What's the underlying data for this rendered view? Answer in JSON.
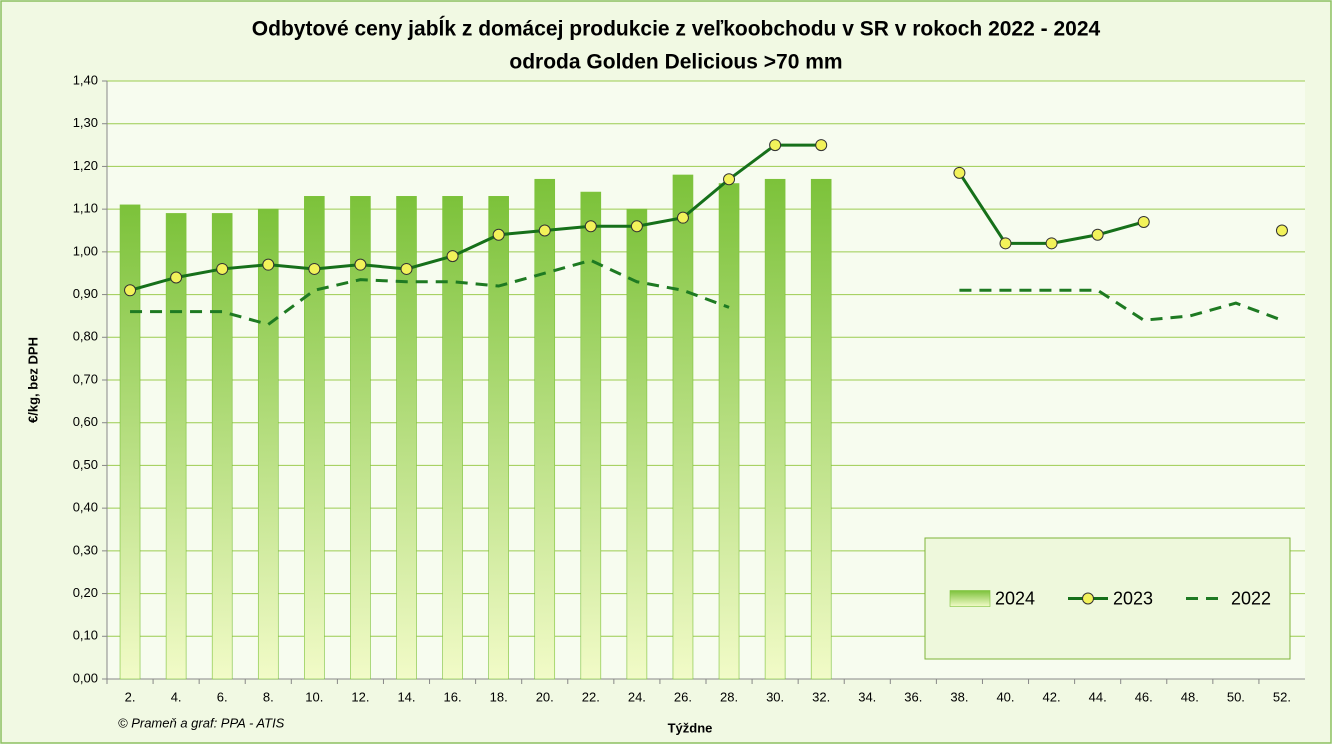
{
  "chart_data": {
    "type": "bar",
    "title": "Odbytové ceny jabĺk z domácej produkcie z veľkoobchodu v SR v rokoch 2022 - 2024",
    "subtitle": "odroda Golden Delicious >70 mm",
    "y_label": "€/kg, bez DPH",
    "x_label": "Týždne",
    "source": "© Prameň a graf: PPA - ATIS",
    "categories": [
      "2.",
      "4.",
      "6.",
      "8.",
      "10.",
      "12.",
      "14.",
      "16.",
      "18.",
      "20.",
      "22.",
      "24.",
      "26.",
      "28.",
      "30.",
      "32.",
      "34.",
      "36.",
      "38.",
      "40.",
      "42.",
      "44.",
      "46.",
      "48.",
      "50.",
      "52."
    ],
    "series": [
      {
        "name": "2024",
        "type": "bar",
        "color": "#7cc23a",
        "values": [
          1.11,
          1.09,
          1.09,
          1.1,
          1.13,
          1.13,
          1.13,
          1.13,
          1.13,
          1.17,
          1.14,
          1.1,
          1.18,
          1.16,
          1.17,
          1.17,
          null,
          null,
          null,
          null,
          null,
          null,
          null,
          null,
          null,
          null
        ]
      },
      {
        "name": "2023",
        "type": "line",
        "marker": true,
        "color": "#16701a",
        "values": [
          0.91,
          0.94,
          0.96,
          0.97,
          0.96,
          0.97,
          0.96,
          0.99,
          1.04,
          1.05,
          1.06,
          1.06,
          1.08,
          1.17,
          1.25,
          1.25,
          null,
          null,
          1.185,
          1.02,
          1.02,
          1.04,
          1.07,
          null,
          null,
          1.05
        ]
      },
      {
        "name": "2022",
        "type": "line",
        "dashed": true,
        "color": "#1e7a22",
        "values": [
          0.86,
          0.86,
          0.86,
          0.83,
          0.91,
          0.935,
          0.93,
          0.93,
          0.92,
          0.95,
          0.98,
          0.93,
          0.91,
          0.87,
          null,
          null,
          null,
          null,
          0.91,
          0.91,
          0.91,
          0.91,
          0.84,
          0.85,
          0.88,
          0.84
        ]
      }
    ],
    "ylim": [
      0,
      1.4
    ],
    "yticks": [
      {
        "value": 0,
        "label": "0,00"
      },
      {
        "value": 0.1,
        "label": "0,10"
      },
      {
        "value": 0.2,
        "label": "0,20"
      },
      {
        "value": 0.3,
        "label": "0,30"
      },
      {
        "value": 0.4,
        "label": "0,40"
      },
      {
        "value": 0.5,
        "label": "0,50"
      },
      {
        "value": 0.6,
        "label": "0,60"
      },
      {
        "value": 0.7,
        "label": "0,70"
      },
      {
        "value": 0.8,
        "label": "0,80"
      },
      {
        "value": 0.9,
        "label": "0,90"
      },
      {
        "value": 1.0,
        "label": "1,00"
      },
      {
        "value": 1.1,
        "label": "1,10"
      },
      {
        "value": 1.2,
        "label": "1,20"
      },
      {
        "value": 1.3,
        "label": "1,30"
      },
      {
        "value": 1.4,
        "label": "1,40"
      }
    ],
    "grid": true,
    "legend": "bottom-right"
  }
}
